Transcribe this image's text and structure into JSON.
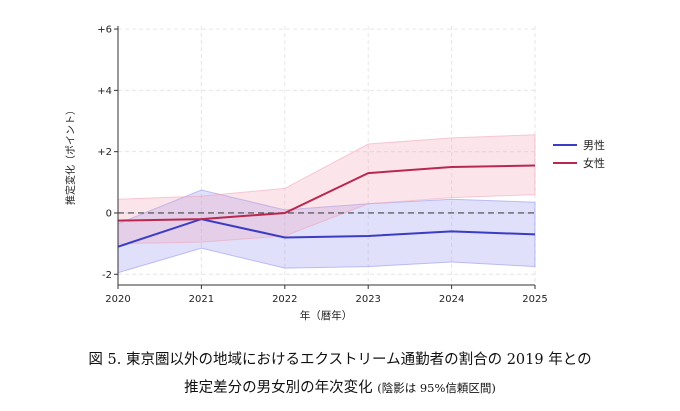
{
  "chart_data": {
    "type": "line",
    "xlabel": "年（暦年）",
    "ylabel": "推定変化（ポイント）",
    "x": [
      2020,
      2021,
      2022,
      2023,
      2024,
      2025
    ],
    "xlim": [
      2020,
      2025
    ],
    "ylim": [
      -2.35,
      6.1
    ],
    "yticks": [
      {
        "value": 6,
        "label": "+6"
      },
      {
        "value": 4,
        "label": "+4"
      },
      {
        "value": 2,
        "label": "+2"
      },
      {
        "value": 0,
        "label": "0"
      },
      {
        "value": -2,
        "label": "-2"
      }
    ],
    "grid": true,
    "reference_line": 0,
    "legend_position": "right",
    "series": [
      {
        "name": "男性",
        "color": "#3b3bc4",
        "band_color": "#8f8ff0",
        "values": [
          -1.1,
          -0.2,
          -0.8,
          -0.75,
          -0.6,
          -0.7
        ],
        "lower": [
          -1.95,
          -1.15,
          -1.8,
          -1.75,
          -1.6,
          -1.75
        ],
        "upper": [
          -0.35,
          0.75,
          0.1,
          0.3,
          0.45,
          0.35
        ]
      },
      {
        "name": "女性",
        "color": "#b8284f",
        "band_color": "#f2a3b8",
        "values": [
          -0.25,
          -0.2,
          0.0,
          1.3,
          1.5,
          1.55
        ],
        "lower": [
          -1.0,
          -0.95,
          -0.75,
          0.3,
          0.5,
          0.6
        ],
        "upper": [
          0.45,
          0.55,
          0.8,
          2.25,
          2.45,
          2.55
        ]
      }
    ]
  },
  "caption": {
    "line1": "図 5.  東京圏以外の地域におけるエクストリーム通勤者の割合の 2019 年との",
    "line2": "推定差分の男女別の年次変化",
    "note": "(陰影は 95%信頼区間)"
  }
}
